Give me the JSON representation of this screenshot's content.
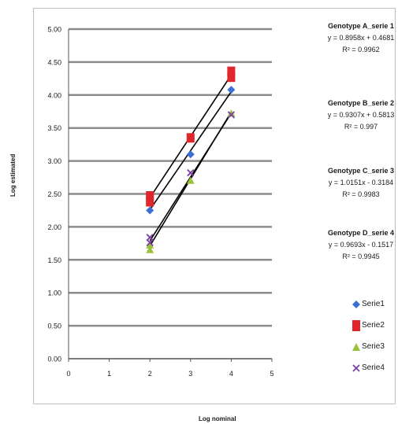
{
  "chart_data": {
    "type": "scatter",
    "xlabel": "Log nominal",
    "ylabel": "Log estimated",
    "xlim": [
      0,
      5
    ],
    "ylim": [
      0,
      5
    ],
    "x_ticks": [
      "0",
      "1",
      "2",
      "3",
      "4",
      "5"
    ],
    "y_ticks": [
      "0.00",
      "0.50",
      "1.00",
      "1.50",
      "2.00",
      "2.50",
      "3.00",
      "3.50",
      "4.00",
      "4.50",
      "5.00"
    ],
    "grid": "horizontal",
    "legend": "right",
    "series": [
      {
        "name": "Serie1",
        "color": "#3a6fd8",
        "marker": "diamond",
        "x": [
          2,
          3,
          4
        ],
        "y": [
          2.25,
          3.1,
          4.08
        ],
        "equation_title": "Genotype A_serie 1",
        "equation": "y = 0.8958x + 0.4681",
        "r2": "R² = 0.9962"
      },
      {
        "name": "Serie2",
        "color": "#e0262b",
        "marker": "square",
        "x": [
          2,
          2,
          3,
          4,
          4
        ],
        "y": [
          2.38,
          2.47,
          3.35,
          4.27,
          4.36
        ],
        "equation_title": "Genotype B_serie 2",
        "equation": "y = 0.9307x + 0.5813",
        "r2": "R² = 0.997"
      },
      {
        "name": "Serie3",
        "color": "#9bc23c",
        "marker": "triangle",
        "x": [
          2,
          2,
          3,
          4
        ],
        "y": [
          1.65,
          1.72,
          2.7,
          3.72
        ],
        "equation_title": "Genotype C_serie 3",
        "equation": "y = 1.0151x - 0.3184",
        "r2": "R² = 0.9983"
      },
      {
        "name": "Serie4",
        "color": "#7a3fa0",
        "marker": "x",
        "x": [
          2,
          2,
          3,
          4
        ],
        "y": [
          1.84,
          1.76,
          2.82,
          3.7
        ],
        "equation_title": "Genotype D_serie 4",
        "equation": "y = 0.9693x - 0.1517",
        "r2": "R² = 0.9945"
      }
    ]
  }
}
